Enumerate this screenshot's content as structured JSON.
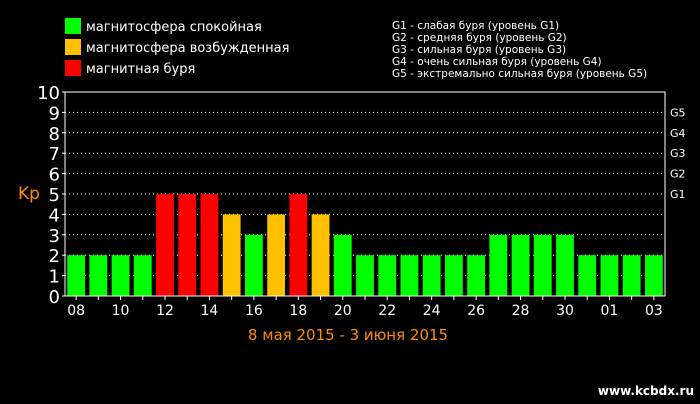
{
  "legend": {
    "items": [
      {
        "label": "магнитосфера спокойная",
        "color": "#00ff00"
      },
      {
        "label": "магнитосфера возбужденная",
        "color": "#ffc000"
      },
      {
        "label": "магнитная буря",
        "color": "#ff0000"
      }
    ],
    "storm_levels": [
      "G1 - слабая буря (уровень G1)",
      "G2 - средняя буря (уровень G2)",
      "G3 - сильная буря (уровень G3)",
      "G4 - очень сильная буря (уровень G4)",
      "G5 - экстремально сильная буря (уровень G5)"
    ]
  },
  "watermark": "www.kcbdx.ru",
  "colors": {
    "background": "#000000",
    "quiet": "#00ff00",
    "active": "#ffc000",
    "storm": "#ff0000",
    "accent": "#ff8c00",
    "grid": "#ffffff"
  },
  "chart_data": {
    "type": "bar",
    "title": "",
    "ylabel": "Kp",
    "xlabel": "8 мая 2015 - 3 июня 2015",
    "ylim": [
      0,
      10
    ],
    "y_ticks": [
      0,
      1,
      2,
      3,
      4,
      5,
      6,
      7,
      8,
      9,
      10
    ],
    "right_axis_labels": [
      {
        "label": "G1",
        "value": 5
      },
      {
        "label": "G2",
        "value": 6
      },
      {
        "label": "G3",
        "value": 7
      },
      {
        "label": "G4",
        "value": 8
      },
      {
        "label": "G5",
        "value": 9
      }
    ],
    "grid": true,
    "categories": [
      "08",
      "09",
      "10",
      "11",
      "12",
      "13",
      "14",
      "15",
      "16",
      "17",
      "18",
      "19",
      "20",
      "21",
      "22",
      "23",
      "24",
      "25",
      "26",
      "27",
      "28",
      "29",
      "30",
      "31",
      "01",
      "02",
      "03"
    ],
    "x_tick_labels": [
      "08",
      "10",
      "12",
      "14",
      "16",
      "18",
      "20",
      "22",
      "24",
      "26",
      "28",
      "30",
      "01",
      "03"
    ],
    "values": [
      2,
      2,
      2,
      2,
      5,
      5,
      5,
      4,
      3,
      4,
      5,
      4,
      3,
      2,
      2,
      2,
      2,
      2,
      2,
      3,
      3,
      3,
      3,
      2,
      2,
      2,
      2
    ],
    "bar_status": [
      "quiet",
      "quiet",
      "quiet",
      "quiet",
      "storm",
      "storm",
      "storm",
      "active",
      "quiet",
      "active",
      "storm",
      "active",
      "quiet",
      "quiet",
      "quiet",
      "quiet",
      "quiet",
      "quiet",
      "quiet",
      "quiet",
      "quiet",
      "quiet",
      "quiet",
      "quiet",
      "quiet",
      "quiet",
      "quiet"
    ]
  }
}
